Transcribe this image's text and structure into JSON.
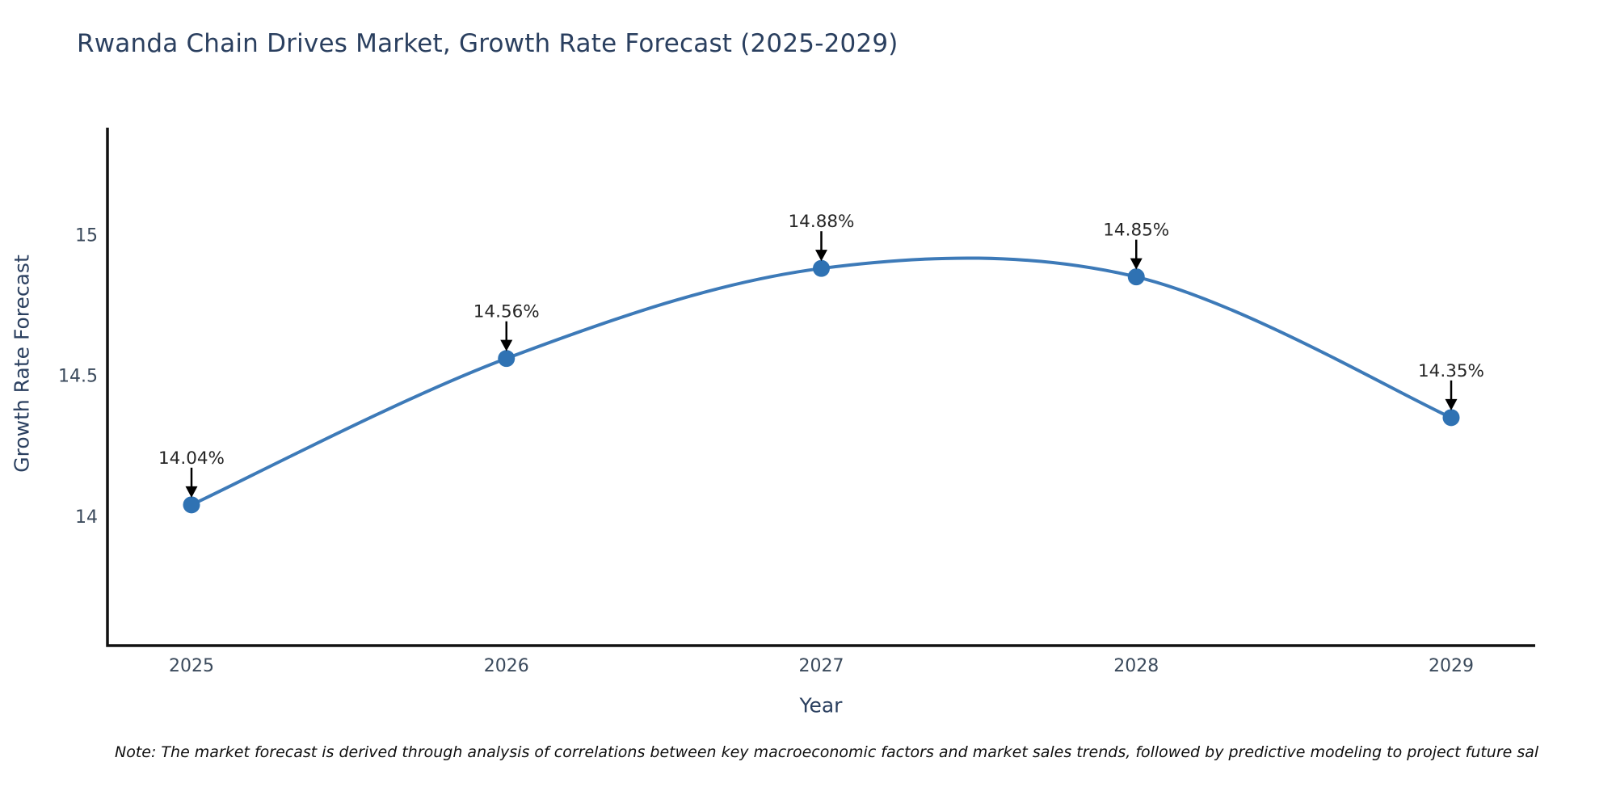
{
  "title": "Rwanda Chain Drives Market, Growth Rate Forecast (2025-2029)",
  "note": "Note: The market forecast is derived through analysis of correlations between key macroeconomic factors and market sales trends, followed by predictive modeling to project future sal",
  "chart_data": {
    "type": "line",
    "line_shape": "spline",
    "title": "Rwanda Chain Drives Market, Growth Rate Forecast (2025-2029)",
    "xlabel": "Year",
    "ylabel": "Growth Rate Forecast",
    "categories": [
      "2025",
      "2026",
      "2027",
      "2028",
      "2029"
    ],
    "series": [
      {
        "name": "Growth Rate Forecast",
        "values": [
          14.04,
          14.56,
          14.88,
          14.85,
          14.35
        ]
      }
    ],
    "point_labels": [
      "14.04%",
      "14.56%",
      "14.88%",
      "14.85%",
      "14.35%"
    ],
    "yticks": [
      {
        "value": 14,
        "label": "14"
      },
      {
        "value": 14.5,
        "label": "14.5"
      },
      {
        "value": 15,
        "label": "15"
      }
    ],
    "ylim": [
      13.54,
      15.38
    ],
    "grid": false,
    "legend": "none",
    "colors": {
      "line": "#3d7ab8",
      "marker": "#2f72b3",
      "axis": "#111111",
      "tick_label": "#3b4a5c",
      "annotation_text": "#262626",
      "annotation_arrow": "#000000"
    }
  }
}
